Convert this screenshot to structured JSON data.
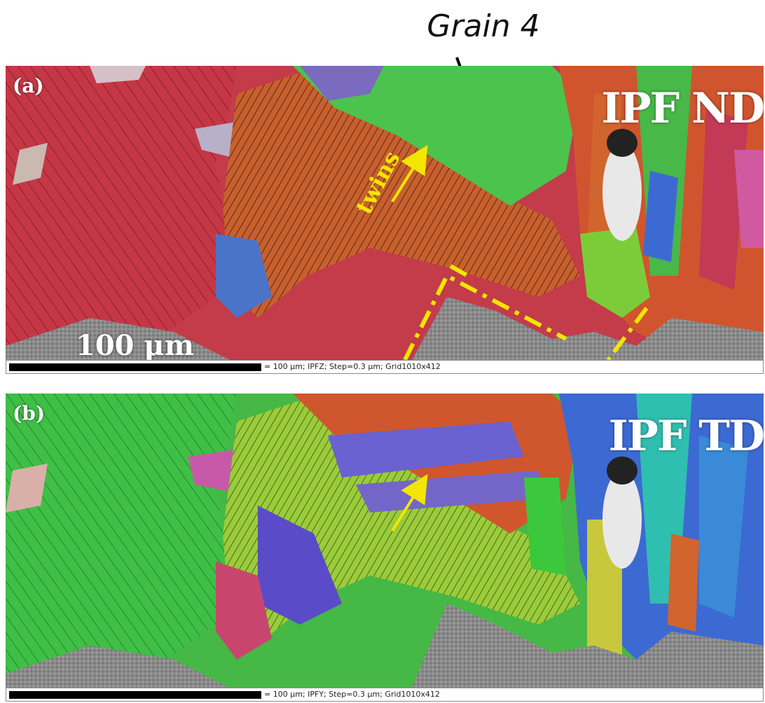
{
  "figure": {
    "grain_label": "Grain 4"
  },
  "panel_a": {
    "label": "(a)",
    "map_type": "IPF ND",
    "scale_label": "100 μm",
    "annotation": "twins",
    "info_text": "= 100 μm; IPFZ; Step=0.3 μm; Grid1010x412"
  },
  "panel_b": {
    "label": "(b)",
    "map_type": "IPF TD",
    "info_text": "= 100 μm; IPFY; Step=0.3 μm; Grid1010x412"
  },
  "colors": {
    "annotation_yellow": "#f2e600",
    "ipf_red": "#c8323c",
    "ipf_green": "#3cc83c",
    "ipf_blue": "#3c5ad2",
    "ipf_orange": "#d2642d",
    "sem_gray": "#8c8c8c"
  }
}
